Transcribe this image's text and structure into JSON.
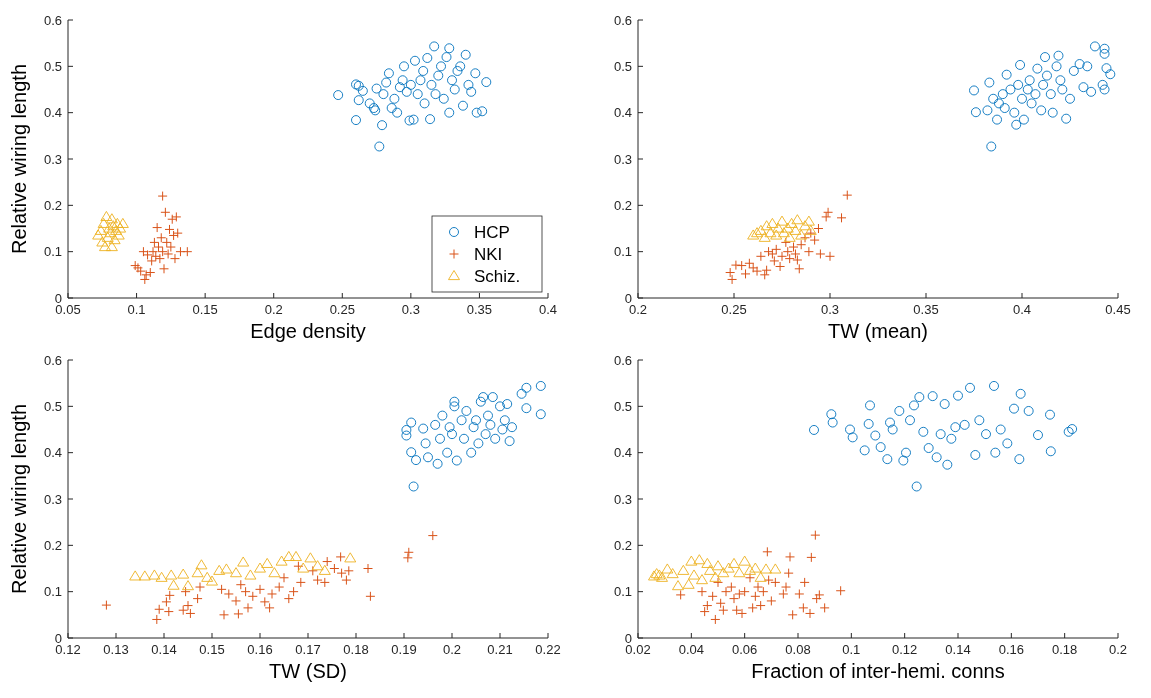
{
  "chart_data": [
    {
      "type": "scatter",
      "xlabel": "Edge density",
      "ylabel": "Relative wiring length",
      "xlim": [
        0.05,
        0.4
      ],
      "xticks": [
        0.05,
        0.1,
        0.15,
        0.2,
        0.25,
        0.3,
        0.35,
        0.4
      ],
      "ylim": [
        0,
        0.6
      ],
      "yticks": [
        0,
        0.1,
        0.2,
        0.3,
        0.4,
        0.5,
        0.6
      ],
      "legend": "bottom right",
      "series": [
        {
          "name": "HCP",
          "color": "#0072bd",
          "marker": "circle",
          "x": [
            0.247,
            0.26,
            0.262,
            0.26,
            0.262,
            0.265,
            0.27,
            0.273,
            0.274,
            0.275,
            0.277,
            0.279,
            0.28,
            0.282,
            0.284,
            0.286,
            0.288,
            0.29,
            0.292,
            0.294,
            0.295,
            0.297,
            0.299,
            0.3,
            0.302,
            0.303,
            0.305,
            0.307,
            0.309,
            0.31,
            0.312,
            0.314,
            0.315,
            0.317,
            0.318,
            0.32,
            0.322,
            0.324,
            0.326,
            0.328,
            0.328,
            0.33,
            0.332,
            0.334,
            0.336,
            0.338,
            0.34,
            0.342,
            0.344,
            0.347,
            0.348,
            0.352,
            0.355
          ],
          "values": [
            0.438,
            0.461,
            0.458,
            0.384,
            0.427,
            0.447,
            0.42,
            0.41,
            0.405,
            0.452,
            0.327,
            0.373,
            0.44,
            0.465,
            0.485,
            0.41,
            0.43,
            0.4,
            0.455,
            0.47,
            0.5,
            0.445,
            0.383,
            0.46,
            0.385,
            0.512,
            0.44,
            0.47,
            0.49,
            0.42,
            0.518,
            0.386,
            0.46,
            0.543,
            0.44,
            0.48,
            0.5,
            0.43,
            0.52,
            0.539,
            0.4,
            0.47,
            0.45,
            0.49,
            0.5,
            0.415,
            0.525,
            0.46,
            0.445,
            0.485,
            0.4,
            0.403,
            0.466
          ]
        },
        {
          "name": "NKI",
          "color": "#d95319",
          "marker": "cross",
          "x": [
            0.099,
            0.101,
            0.103,
            0.105,
            0.106,
            0.107,
            0.108,
            0.11,
            0.111,
            0.112,
            0.113,
            0.114,
            0.115,
            0.116,
            0.117,
            0.118,
            0.119,
            0.119,
            0.12,
            0.121,
            0.122,
            0.123,
            0.124,
            0.125,
            0.126,
            0.127,
            0.128,
            0.129,
            0.13,
            0.132,
            0.137
          ],
          "values": [
            0.07,
            0.065,
            0.058,
            0.1,
            0.04,
            0.05,
            0.093,
            0.055,
            0.08,
            0.1,
            0.12,
            0.09,
            0.152,
            0.11,
            0.085,
            0.13,
            0.22,
            0.1,
            0.063,
            0.185,
            0.12,
            0.095,
            0.148,
            0.11,
            0.17,
            0.135,
            0.085,
            0.175,
            0.14,
            0.1,
            0.1
          ]
        },
        {
          "name": "Schiz.",
          "color": "#edb120",
          "marker": "triangle",
          "x": [
            0.072,
            0.074,
            0.075,
            0.076,
            0.077,
            0.078,
            0.079,
            0.08,
            0.081,
            0.082,
            0.082,
            0.083,
            0.084,
            0.085,
            0.086,
            0.087,
            0.088,
            0.09
          ],
          "values": [
            0.135,
            0.145,
            0.12,
            0.16,
            0.11,
            0.175,
            0.13,
            0.15,
            0.14,
            0.17,
            0.11,
            0.155,
            0.125,
            0.145,
            0.16,
            0.135,
            0.15,
            0.16
          ]
        }
      ]
    },
    {
      "type": "scatter",
      "xlabel": "TW (mean)",
      "xlim": [
        0.2,
        0.45
      ],
      "xticks": [
        0.2,
        0.25,
        0.3,
        0.35,
        0.4,
        0.45
      ],
      "ylim": [
        0,
        0.6
      ],
      "yticks": [
        0,
        0.1,
        0.2,
        0.3,
        0.4,
        0.5,
        0.6
      ],
      "series": [
        {
          "color": "#0072bd",
          "marker": "circle",
          "x": [
            0.375,
            0.376,
            0.383,
            0.382,
            0.384,
            0.385,
            0.387,
            0.388,
            0.39,
            0.391,
            0.392,
            0.394,
            0.396,
            0.397,
            0.398,
            0.399,
            0.4,
            0.401,
            0.403,
            0.404,
            0.405,
            0.407,
            0.408,
            0.41,
            0.411,
            0.412,
            0.413,
            0.415,
            0.416,
            0.418,
            0.419,
            0.42,
            0.421,
            0.423,
            0.425,
            0.427,
            0.43,
            0.432,
            0.434,
            0.436,
            0.438,
            0.442,
            0.443,
            0.443,
            0.443,
            0.444,
            0.446
          ],
          "values": [
            0.448,
            0.401,
            0.465,
            0.405,
            0.327,
            0.43,
            0.385,
            0.42,
            0.44,
            0.41,
            0.482,
            0.45,
            0.4,
            0.374,
            0.46,
            0.503,
            0.43,
            0.385,
            0.45,
            0.47,
            0.42,
            0.44,
            0.495,
            0.405,
            0.46,
            0.52,
            0.48,
            0.44,
            0.4,
            0.5,
            0.523,
            0.47,
            0.45,
            0.387,
            0.43,
            0.49,
            0.505,
            0.455,
            0.5,
            0.445,
            0.543,
            0.46,
            0.538,
            0.527,
            0.45,
            0.496,
            0.483
          ]
        },
        {
          "color": "#d95319",
          "marker": "cross",
          "x": [
            0.248,
            0.249,
            0.251,
            0.254,
            0.256,
            0.258,
            0.26,
            0.262,
            0.264,
            0.266,
            0.267,
            0.268,
            0.27,
            0.271,
            0.272,
            0.274,
            0.275,
            0.277,
            0.278,
            0.279,
            0.281,
            0.282,
            0.283,
            0.284,
            0.285,
            0.287,
            0.289,
            0.29,
            0.292,
            0.294,
            0.295,
            0.298,
            0.299,
            0.3,
            0.306,
            0.309
          ],
          "values": [
            0.055,
            0.04,
            0.071,
            0.07,
            0.052,
            0.075,
            0.065,
            0.058,
            0.09,
            0.05,
            0.06,
            0.1,
            0.095,
            0.08,
            0.105,
            0.068,
            0.09,
            0.12,
            0.1,
            0.085,
            0.11,
            0.095,
            0.082,
            0.063,
            0.115,
            0.13,
            0.1,
            0.14,
            0.125,
            0.15,
            0.095,
            0.175,
            0.185,
            0.09,
            0.173,
            0.222
          ]
        },
        {
          "color": "#edb120",
          "marker": "triangle",
          "x": [
            0.26,
            0.262,
            0.264,
            0.266,
            0.267,
            0.269,
            0.27,
            0.272,
            0.273,
            0.275,
            0.276,
            0.278,
            0.279,
            0.28,
            0.282,
            0.283,
            0.285,
            0.287,
            0.289,
            0.29
          ],
          "values": [
            0.135,
            0.14,
            0.145,
            0.13,
            0.155,
            0.14,
            0.16,
            0.135,
            0.15,
            0.165,
            0.14,
            0.15,
            0.13,
            0.16,
            0.145,
            0.168,
            0.135,
            0.155,
            0.165,
            0.145
          ]
        }
      ]
    },
    {
      "type": "scatter",
      "xlabel": "TW (SD)",
      "ylabel": "Relative wiring length",
      "xlim": [
        0.12,
        0.22
      ],
      "xticks": [
        0.12,
        0.13,
        0.14,
        0.15,
        0.16,
        0.17,
        0.18,
        0.19,
        0.2,
        0.21,
        0.22
      ],
      "ylim": [
        0,
        0.6
      ],
      "yticks": [
        0,
        0.1,
        0.2,
        0.3,
        0.4,
        0.5,
        0.6
      ],
      "series": [
        {
          "color": "#0072bd",
          "marker": "circle",
          "x": [
            0.1905,
            0.1905,
            0.1915,
            0.1915,
            0.192,
            0.1925,
            0.194,
            0.1945,
            0.195,
            0.1965,
            0.197,
            0.1975,
            0.198,
            0.199,
            0.1995,
            0.2,
            0.2005,
            0.2005,
            0.201,
            0.202,
            0.2025,
            0.203,
            0.204,
            0.2045,
            0.205,
            0.2055,
            0.206,
            0.2065,
            0.207,
            0.2075,
            0.208,
            0.2085,
            0.209,
            0.21,
            0.2105,
            0.211,
            0.2115,
            0.212,
            0.2125,
            0.2145,
            0.2155,
            0.2155,
            0.2185,
            0.2185
          ],
          "values": [
            0.449,
            0.437,
            0.465,
            0.401,
            0.327,
            0.384,
            0.452,
            0.42,
            0.39,
            0.46,
            0.376,
            0.43,
            0.48,
            0.4,
            0.455,
            0.44,
            0.5,
            0.51,
            0.383,
            0.47,
            0.43,
            0.49,
            0.4,
            0.455,
            0.47,
            0.42,
            0.51,
            0.52,
            0.44,
            0.48,
            0.46,
            0.52,
            0.43,
            0.5,
            0.45,
            0.47,
            0.505,
            0.425,
            0.455,
            0.527,
            0.54,
            0.496,
            0.544,
            0.483
          ]
        },
        {
          "color": "#d95319",
          "marker": "cross",
          "x": [
            0.128,
            0.1385,
            0.139,
            0.1405,
            0.141,
            0.1412,
            0.144,
            0.1445,
            0.145,
            0.1455,
            0.147,
            0.1475,
            0.152,
            0.1525,
            0.1535,
            0.155,
            0.1555,
            0.156,
            0.157,
            0.1575,
            0.1585,
            0.16,
            0.161,
            0.162,
            0.1625,
            0.164,
            0.165,
            0.166,
            0.167,
            0.168,
            0.1685,
            0.171,
            0.172,
            0.1735,
            0.174,
            0.1755,
            0.1768,
            0.177,
            0.178,
            0.1785,
            0.1825,
            0.183,
            0.1908,
            0.191,
            0.196
          ],
          "values": [
            0.071,
            0.04,
            0.062,
            0.078,
            0.057,
            0.092,
            0.06,
            0.1,
            0.07,
            0.053,
            0.085,
            0.11,
            0.105,
            0.05,
            0.095,
            0.08,
            0.052,
            0.115,
            0.1,
            0.065,
            0.09,
            0.105,
            0.078,
            0.065,
            0.095,
            0.11,
            0.13,
            0.085,
            0.1,
            0.155,
            0.12,
            0.145,
            0.125,
            0.12,
            0.165,
            0.15,
            0.175,
            0.14,
            0.125,
            0.145,
            0.15,
            0.09,
            0.173,
            0.185,
            0.221
          ]
        },
        {
          "color": "#edb120",
          "marker": "triangle",
          "x": [
            0.134,
            0.136,
            0.138,
            0.1395,
            0.1415,
            0.142,
            0.144,
            0.145,
            0.147,
            0.1478,
            0.149,
            0.15,
            0.1515,
            0.153,
            0.155,
            0.1565,
            0.158,
            0.16,
            0.1615,
            0.163,
            0.1645,
            0.166,
            0.1675,
            0.169,
            0.1705,
            0.172,
            0.1735,
            0.1788
          ],
          "values": [
            0.133,
            0.133,
            0.135,
            0.13,
            0.135,
            0.113,
            0.137,
            0.112,
            0.14,
            0.157,
            0.13,
            0.122,
            0.145,
            0.148,
            0.14,
            0.163,
            0.135,
            0.15,
            0.16,
            0.14,
            0.165,
            0.175,
            0.175,
            0.15,
            0.172,
            0.155,
            0.145,
            0.172
          ]
        }
      ]
    },
    {
      "type": "scatter",
      "xlabel": "Fraction of inter-hemi. conns",
      "xlim": [
        0.02,
        0.2
      ],
      "xticks": [
        0.02,
        0.04,
        0.06,
        0.08,
        0.1,
        0.12,
        0.14,
        0.16,
        0.18,
        0.2
      ],
      "ylim": [
        0,
        0.6
      ],
      "yticks": [
        0,
        0.1,
        0.2,
        0.3,
        0.4,
        0.5,
        0.6
      ],
      "series": [
        {
          "color": "#0072bd",
          "marker": "circle",
          "x": [
            0.086,
            0.0925,
            0.093,
            0.0995,
            0.1005,
            0.105,
            0.1065,
            0.107,
            0.109,
            0.111,
            0.1135,
            0.1145,
            0.1155,
            0.118,
            0.1195,
            0.1205,
            0.122,
            0.1235,
            0.1245,
            0.1255,
            0.127,
            0.129,
            0.1305,
            0.132,
            0.1335,
            0.135,
            0.136,
            0.1375,
            0.139,
            0.14,
            0.1425,
            0.1445,
            0.1465,
            0.148,
            0.1505,
            0.1535,
            0.154,
            0.156,
            0.1585,
            0.161,
            0.163,
            0.1635,
            0.1665,
            0.17,
            0.1745,
            0.1748,
            0.1815,
            0.1828
          ],
          "values": [
            0.449,
            0.483,
            0.465,
            0.45,
            0.433,
            0.405,
            0.462,
            0.502,
            0.437,
            0.412,
            0.386,
            0.465,
            0.45,
            0.49,
            0.383,
            0.4,
            0.47,
            0.502,
            0.327,
            0.52,
            0.445,
            0.41,
            0.522,
            0.39,
            0.44,
            0.505,
            0.374,
            0.43,
            0.455,
            0.523,
            0.46,
            0.54,
            0.395,
            0.47,
            0.44,
            0.544,
            0.4,
            0.45,
            0.42,
            0.495,
            0.386,
            0.527,
            0.49,
            0.438,
            0.482,
            0.403,
            0.445,
            0.451
          ]
        },
        {
          "color": "#d95319",
          "marker": "cross",
          "x": [
            0.036,
            0.044,
            0.045,
            0.046,
            0.048,
            0.049,
            0.05,
            0.051,
            0.052,
            0.053,
            0.055,
            0.056,
            0.057,
            0.058,
            0.059,
            0.06,
            0.062,
            0.063,
            0.064,
            0.065,
            0.066,
            0.067,
            0.0685,
            0.069,
            0.07,
            0.0715,
            0.0745,
            0.0755,
            0.0765,
            0.077,
            0.078,
            0.0805,
            0.082,
            0.0825,
            0.0845,
            0.085,
            0.0865,
            0.087,
            0.088,
            0.09,
            0.096
          ],
          "values": [
            0.093,
            0.1,
            0.057,
            0.07,
            0.09,
            0.04,
            0.12,
            0.075,
            0.06,
            0.1,
            0.11,
            0.085,
            0.06,
            0.095,
            0.053,
            0.1,
            0.13,
            0.065,
            0.09,
            0.11,
            0.07,
            0.1,
            0.186,
            0.125,
            0.08,
            0.12,
            0.095,
            0.11,
            0.14,
            0.175,
            0.05,
            0.095,
            0.065,
            0.12,
            0.053,
            0.174,
            0.222,
            0.085,
            0.093,
            0.065,
            0.102
          ]
        },
        {
          "color": "#edb120",
          "marker": "triangle",
          "x": [
            0.026,
            0.027,
            0.028,
            0.029,
            0.031,
            0.033,
            0.035,
            0.037,
            0.039,
            0.04,
            0.041,
            0.043,
            0.044,
            0.046,
            0.047,
            0.049,
            0.05,
            0.052,
            0.054,
            0.056,
            0.058,
            0.06,
            0.062,
            0.064,
            0.066,
            0.068,
            0.0715
          ],
          "values": [
            0.133,
            0.138,
            0.135,
            0.13,
            0.148,
            0.138,
            0.112,
            0.145,
            0.115,
            0.165,
            0.135,
            0.168,
            0.125,
            0.16,
            0.145,
            0.13,
            0.155,
            0.14,
            0.15,
            0.16,
            0.14,
            0.165,
            0.145,
            0.15,
            0.13,
            0.148,
            0.148
          ]
        }
      ]
    }
  ]
}
